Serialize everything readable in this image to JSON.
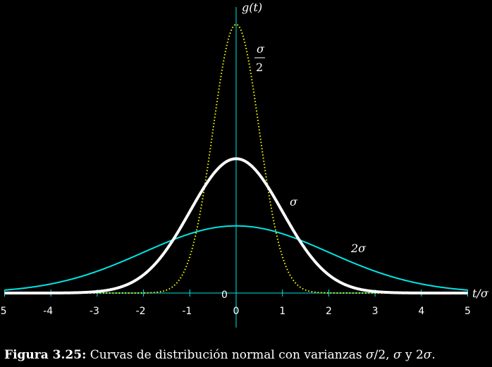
{
  "chart_data": {
    "type": "line",
    "title": "",
    "xlabel": "t/σ",
    "ylabel": "g(t)",
    "xlim": [
      -5,
      5
    ],
    "x_ticks": [
      "-5",
      "-4",
      "-3",
      "-2",
      "-1",
      "0",
      "1",
      "2",
      "3",
      "4",
      "5"
    ],
    "origin_label": "0",
    "series": [
      {
        "name": "σ/2",
        "label_num": "σ",
        "label_den": "2",
        "sigma": 0.5,
        "color": "#ffff00",
        "style": "dotted",
        "peak": 0.798,
        "values_at_x": {
          "x": [
            -2,
            -1,
            0,
            1,
            2
          ],
          "y": [
            0.0003,
            0.108,
            0.798,
            0.108,
            0.0003
          ]
        }
      },
      {
        "name": "σ",
        "label": "σ",
        "sigma": 1.0,
        "color": "#ffffff",
        "style": "solid",
        "peak": 0.399,
        "values_at_x": {
          "x": [
            -3,
            -2,
            -1,
            0,
            1,
            2,
            3
          ],
          "y": [
            0.004,
            0.054,
            0.242,
            0.399,
            0.242,
            0.054,
            0.004
          ]
        }
      },
      {
        "name": "2σ",
        "label": "2σ",
        "sigma": 2.0,
        "color": "#00e5e5",
        "style": "solid",
        "peak": 0.199,
        "values_at_x": {
          "x": [
            -5,
            -4,
            -3,
            -2,
            -1,
            0,
            1,
            2,
            3,
            4,
            5
          ],
          "y": [
            0.009,
            0.027,
            0.065,
            0.121,
            0.176,
            0.199,
            0.176,
            0.121,
            0.065,
            0.027,
            0.009
          ]
        }
      }
    ]
  },
  "caption": {
    "label": "Figura 3.25:",
    "text_1": " Curvas de distribución normal con varianzas ",
    "sym_1": "σ",
    "text_2": "/2, ",
    "sym_2": "σ",
    "text_3": " y 2",
    "sym_3": "σ",
    "text_4": "."
  }
}
